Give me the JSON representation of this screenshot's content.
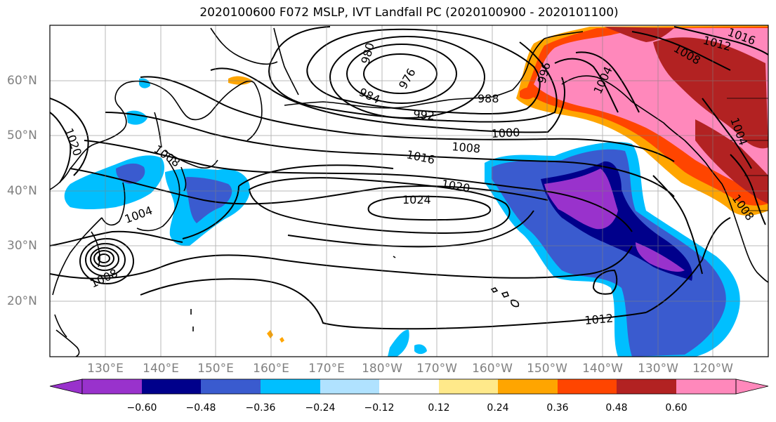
{
  "title": "2020100600 F072 MSLP, IVT Landfall PC (2020100900 - 2020101100)",
  "map": {
    "lon_labels": [
      "130°E",
      "140°E",
      "150°E",
      "160°E",
      "170°E",
      "180°W",
      "170°W",
      "160°W",
      "150°W",
      "140°W",
      "130°W",
      "120°W"
    ],
    "lat_labels": [
      "60°N",
      "50°N",
      "40°N",
      "30°N",
      "20°N"
    ],
    "contour_labels": [
      "1020",
      "1008",
      "1004",
      "1008",
      "984",
      "976",
      "980",
      "988",
      "992",
      "996",
      "1000",
      "1008",
      "1016",
      "1020",
      "1024",
      "1004",
      "1012",
      "1016",
      "1008",
      "1004",
      "1008",
      "1012"
    ],
    "colors": {
      "land_outline": "#000000",
      "grid": "#808080",
      "contour": "#000000"
    }
  },
  "colorbar": {
    "ticks": [
      "−0.60",
      "−0.48",
      "−0.36",
      "−0.24",
      "−0.12",
      "0.12",
      "0.24",
      "0.36",
      "0.48",
      "0.60"
    ],
    "colors": [
      "#9932cc",
      "#00008b",
      "#3a5bcf",
      "#00bfff",
      "#b0e2ff",
      "#ffffff",
      "#ffe98a",
      "#ffa500",
      "#ff4500",
      "#b22222",
      "#ff88bb",
      "#ff88bb"
    ]
  }
}
